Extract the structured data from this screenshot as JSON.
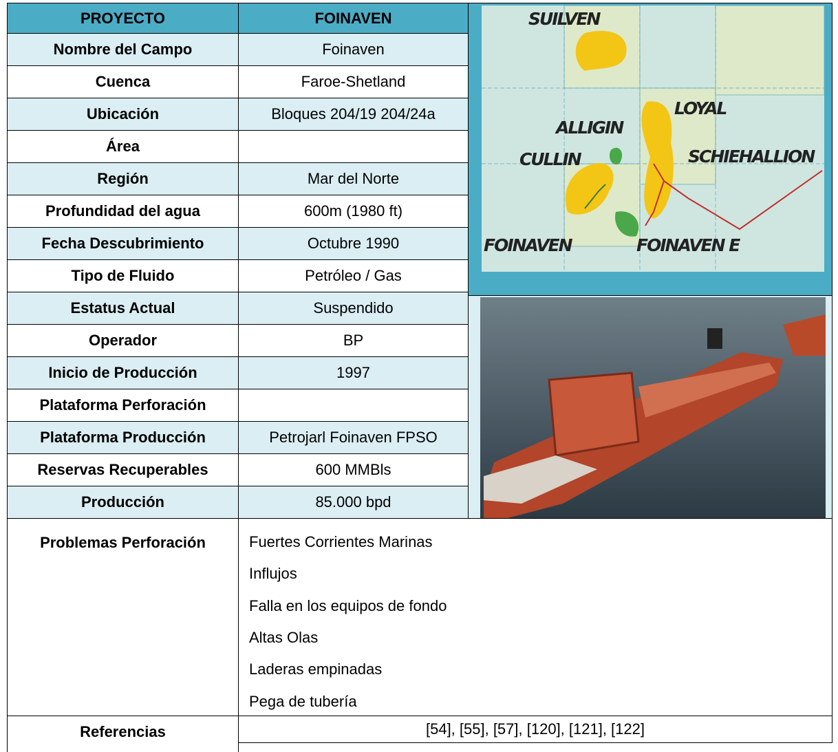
{
  "header": {
    "label": "PROYECTO",
    "value": "FOINAVEN"
  },
  "rows": [
    {
      "label": "Nombre del Campo",
      "value": "Foinaven"
    },
    {
      "label": "Cuenca",
      "value": "Faroe-Shetland"
    },
    {
      "label": "Ubicación",
      "value": "Bloques 204/19 204/24a"
    },
    {
      "label": "Área"
    },
    {
      "label": "Región",
      "value": "Mar del Norte"
    },
    {
      "label": "Profundidad del agua",
      "value": "600m (1980 ft)"
    },
    {
      "label": "Fecha Descubrimiento",
      "value": "Octubre 1990"
    },
    {
      "label": "Tipo de Fluido",
      "value": "Petróleo / Gas"
    },
    {
      "label": "Estatus Actual",
      "value": "Suspendido"
    },
    {
      "label": "Operador",
      "value": "BP"
    },
    {
      "label": "Inicio de Producción",
      "value": "1997"
    },
    {
      "label": "Plataforma Perforación"
    },
    {
      "label": "Plataforma Producción",
      "value": "Petrojarl Foinaven FPSO"
    },
    {
      "label": "Reservas Recuperables",
      "value": "600 MMBls"
    },
    {
      "label": "Producción",
      "value": "85.000 bpd"
    }
  ],
  "problems": {
    "label": "Problemas Perforación",
    "items": [
      "Fuertes Corrientes Marinas",
      "Influjos",
      "Falla en los equipos de fondo",
      "Altas Olas",
      "Laderas empinadas",
      "Pega de tubería"
    ]
  },
  "references": {
    "label": "Referencias",
    "value": "[54], [55], [57], [120], [121], [122]"
  },
  "map": {
    "labels": [
      "SUILVEN",
      "LOYAL",
      "ALLIGIN",
      "CULLIN",
      "SCHIEHALLION",
      "FOINAVEN",
      "FOINAVEN E"
    ]
  }
}
